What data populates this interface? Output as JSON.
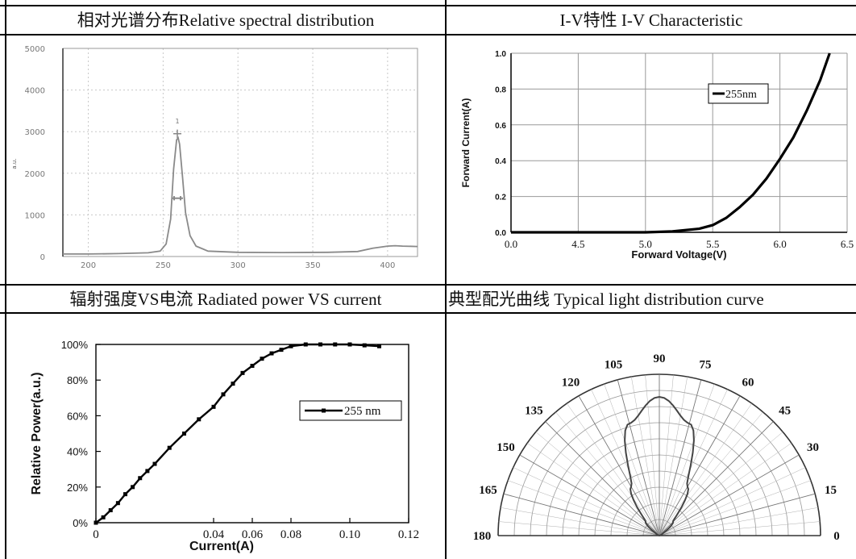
{
  "titles": {
    "spectrum": "相对光谱分布Relative spectral distribution",
    "iv": "I-V特性 I-V Characteristic",
    "power": "辐射强度VS电流 Radiated power VS current",
    "polar": "典型配光曲线 Typical light distribution curve"
  },
  "chart_data": [
    {
      "type": "line",
      "id": "spectrum",
      "ylabel": "a.u.",
      "xticks": [
        "200",
        "250",
        "300",
        "350",
        "400"
      ],
      "yticks": [
        "0",
        "1000",
        "2000",
        "3000",
        "4000",
        "5000"
      ],
      "xlim": [
        183,
        420
      ],
      "ylim": [
        0,
        5000
      ],
      "peak_label": "1",
      "x": [
        183,
        200,
        220,
        240,
        248,
        252,
        255,
        257,
        259,
        260,
        261,
        263,
        265,
        268,
        272,
        280,
        300,
        330,
        360,
        380,
        390,
        400,
        405,
        410,
        420
      ],
      "y": [
        60,
        60,
        70,
        90,
        130,
        300,
        900,
        2100,
        2800,
        2850,
        2700,
        1900,
        1050,
        500,
        250,
        130,
        100,
        95,
        100,
        120,
        200,
        250,
        260,
        250,
        240
      ]
    },
    {
      "type": "line",
      "id": "iv",
      "xlabel": "Forward Voltage(V)",
      "ylabel": "Forward Current(A)",
      "xticks": [
        "0.0",
        "4.5",
        "5.0",
        "5.5",
        "6.0",
        "6.5"
      ],
      "yticks": [
        "0.0",
        "0.2",
        "0.4",
        "0.6",
        "0.8",
        "1.0"
      ],
      "ylim": [
        0,
        1.0
      ],
      "legend": "255nm",
      "x": [
        0.0,
        4.5,
        5.0,
        5.2,
        5.4,
        5.5,
        5.6,
        5.7,
        5.8,
        5.9,
        6.0,
        6.1,
        6.2,
        6.3,
        6.37
      ],
      "y": [
        0.0,
        0.0,
        0.0,
        0.005,
        0.02,
        0.04,
        0.08,
        0.14,
        0.21,
        0.3,
        0.41,
        0.53,
        0.68,
        0.85,
        1.0
      ]
    },
    {
      "type": "line",
      "id": "power",
      "xlabel": "Current(A)",
      "ylabel": "Relative Power(a.u.)",
      "xticks": [
        "0",
        "0.04",
        "0.06",
        "0.08",
        "0.10",
        "0.12"
      ],
      "yticks": [
        "0%",
        "20%",
        "40%",
        "60%",
        "80%",
        "100%"
      ],
      "ylim": [
        0,
        100
      ],
      "legend": "255 nm",
      "x": [
        0,
        0.0025,
        0.005,
        0.0075,
        0.01,
        0.0125,
        0.015,
        0.0175,
        0.02,
        0.025,
        0.03,
        0.035,
        0.04,
        0.045,
        0.05,
        0.055,
        0.06,
        0.065,
        0.07,
        0.075,
        0.08,
        0.085,
        0.09,
        0.095,
        0.1,
        0.105,
        0.11
      ],
      "y": [
        0,
        3,
        7,
        11,
        16,
        20,
        25,
        29,
        33,
        42,
        50,
        58,
        65,
        72,
        78,
        84,
        88,
        92,
        95,
        97,
        99,
        100,
        100,
        100,
        100,
        99.5,
        99
      ]
    },
    {
      "type": "polar",
      "id": "polar",
      "angle_labels": [
        "0",
        "15",
        "30",
        "45",
        "60",
        "75",
        "90",
        "105",
        "120",
        "135",
        "150",
        "165",
        "180"
      ],
      "angles_deg": [
        0,
        15,
        30,
        45,
        60,
        75,
        90,
        105,
        120,
        135,
        150,
        165,
        180
      ],
      "relative_intensity": [
        0,
        0,
        0.02,
        0.12,
        0.35,
        0.72,
        0.86,
        0.72,
        0.35,
        0.12,
        0.02,
        0,
        0
      ]
    }
  ]
}
